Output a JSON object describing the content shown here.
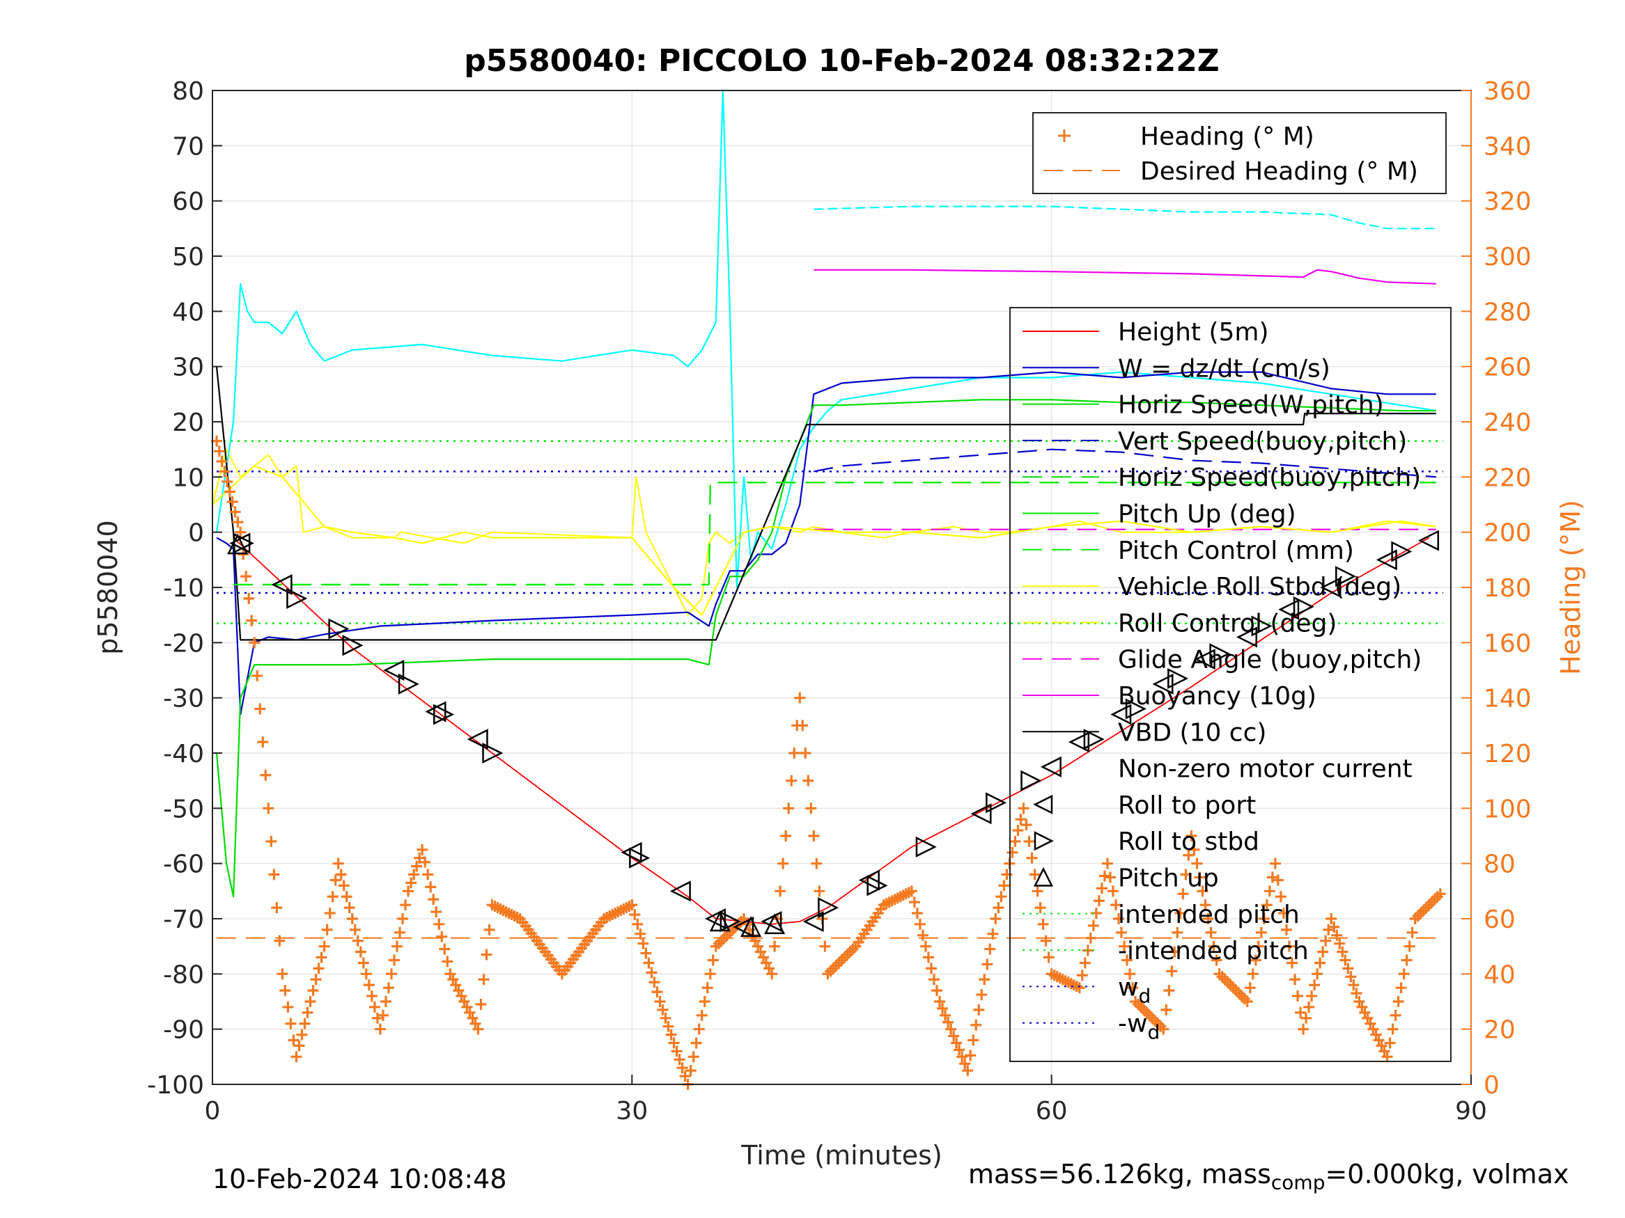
{
  "chart_data": {
    "type": "line",
    "title": "p5580040: PICCOLO 10-Feb-2024 08:32:22Z",
    "xlabel": "Time (minutes)",
    "ylabel": "p5580040",
    "y2label": "Heading (°M)",
    "xlim": [
      0,
      90
    ],
    "ylim": [
      -100,
      80
    ],
    "y2lim": [
      0,
      360
    ],
    "xticks": [
      "0",
      "30",
      "60",
      "90"
    ],
    "yticks": [
      "80",
      "70",
      "60",
      "50",
      "40",
      "30",
      "20",
      "10",
      "0",
      "-10",
      "-20",
      "-30",
      "-40",
      "-50",
      "-60",
      "-70",
      "-80",
      "-90",
      "-100"
    ],
    "y2ticks": [
      "360",
      "340",
      "320",
      "300",
      "280",
      "260",
      "240",
      "220",
      "200",
      "180",
      "160",
      "140",
      "120",
      "100",
      "80",
      "60",
      "40",
      "20",
      "0"
    ],
    "grid": true,
    "legend_top": [
      {
        "label": "Heading (° M)",
        "color": "#f47920",
        "style": "plus"
      },
      {
        "label": "Desired Heading (° M)",
        "color": "#f47920",
        "style": "dash"
      }
    ],
    "legend_main": [
      {
        "label": "Height (5m)",
        "color": "#ff0000",
        "style": "solid"
      },
      {
        "label": "W = dz/dt (cm/s)",
        "color": "#0000cc",
        "style": "solid"
      },
      {
        "label": "Horiz Speed(W,pitch)",
        "color": "#00dd00",
        "style": "solid"
      },
      {
        "label": "Vert Speed(buoy,pitch)",
        "color": "#0000cc",
        "style": "dash"
      },
      {
        "label": "Horiz Speed(buoy,pitch)",
        "color": "#00dd00",
        "style": "dash"
      },
      {
        "label": "Pitch Up (deg)",
        "color": "#00ee00",
        "style": "solid"
      },
      {
        "label": "Pitch Control (mm)",
        "color": "#00ee00",
        "style": "dash"
      },
      {
        "label": "Vehicle Roll Stbd (deg)",
        "color": "#ffff00",
        "style": "solid"
      },
      {
        "label": "Roll Control (deg)",
        "color": "#ffff00",
        "style": "dash"
      },
      {
        "label": "Glide Angle (buoy,pitch)",
        "color": "#ee00ee",
        "style": "dash"
      },
      {
        "label": "Buoyancy (10g)",
        "color": "#ee00ee",
        "style": "solid"
      },
      {
        "label": "VBD (10 cc)",
        "color": "#000000",
        "style": "solid"
      },
      {
        "label": "Non-zero motor current",
        "color": "#000000",
        "style": "none"
      },
      {
        "label": "Roll to port",
        "color": "#000000",
        "style": "tri-left"
      },
      {
        "label": "Roll to stbd",
        "color": "#000000",
        "style": "tri-right"
      },
      {
        "label": "Pitch up",
        "color": "#000000",
        "style": "tri-up"
      },
      {
        "label": "intended pitch",
        "color": "#00ee00",
        "style": "dot"
      },
      {
        "label": "-intended pitch",
        "color": "#00ee00",
        "style": "dot"
      },
      {
        "label": "w",
        "sub": "d",
        "color": "#0000cc",
        "style": "dot"
      },
      {
        "label": "-w",
        "sub": "d",
        "color": "#0000cc",
        "style": "dot"
      }
    ],
    "series": [
      {
        "name": "Height (5m)",
        "color": "#ff0000",
        "x": [
          1.5,
          10,
          20,
          30,
          34,
          36,
          40,
          42,
          44,
          50,
          60,
          70,
          80,
          87
        ],
        "y": [
          -1,
          -21,
          -40,
          -59,
          -66,
          -70,
          -71,
          -70.5,
          -68,
          -57,
          -44,
          -28,
          -11,
          -1
        ]
      },
      {
        "name": "W = dz/dt (cm/s)",
        "color": "#0000cc",
        "x": [
          0.3,
          1.0,
          1.5,
          2.0,
          3.0,
          4.0,
          6.0,
          8.0,
          12,
          16,
          20,
          25,
          30,
          34,
          35.5,
          36,
          37,
          38,
          39,
          40,
          41,
          42,
          43,
          45,
          50,
          55,
          60,
          65,
          70,
          75,
          80,
          84,
          86,
          87.5
        ],
        "y": [
          -1,
          -2,
          -3,
          -33,
          -20,
          -19,
          -19.5,
          -18.5,
          -17,
          -16.5,
          -16,
          -15.5,
          -15,
          -14.5,
          -17,
          -13,
          -7,
          -7,
          -4,
          -4,
          -2,
          5,
          25,
          27,
          28,
          28,
          29,
          28,
          29,
          29,
          26,
          25,
          25,
          25
        ]
      },
      {
        "name": "Horiz Speed(W,pitch)",
        "color": "#00dd00",
        "x": [
          0.3,
          1.0,
          1.5,
          2.0,
          3.0,
          5.0,
          10,
          15,
          20,
          25,
          30,
          34,
          35.5,
          36,
          37,
          38,
          39,
          40,
          41,
          43,
          45,
          50,
          55,
          60,
          65,
          70,
          75,
          80,
          85,
          87.5
        ],
        "y": [
          -40,
          -60,
          -66,
          -30,
          -24,
          -24,
          -24,
          -23.5,
          -23,
          -23,
          -23,
          -23,
          -24,
          -15,
          -8,
          -8,
          -5,
          0,
          10,
          23,
          23,
          23.5,
          24,
          24,
          23.5,
          23.5,
          23,
          22.5,
          22,
          22
        ]
      },
      {
        "name": "Vert Speed(buoy,pitch)",
        "color": "#0000cc",
        "x": [
          43,
          45,
          50,
          55,
          60,
          65,
          70,
          75,
          80,
          85,
          87.5
        ],
        "y": [
          11,
          12,
          13,
          14,
          15,
          14.5,
          13,
          12.5,
          11.5,
          10.5,
          10
        ]
      },
      {
        "name": "Horiz Speed(buoy,pitch)",
        "color": "#00dd00",
        "x": [
          1.5,
          35.5,
          35.6,
          43,
          87.5
        ],
        "y": [
          -9.5,
          -9.5,
          9,
          9,
          9
        ]
      },
      {
        "name": "VBD (10 cc)",
        "color": "#000000",
        "x": [
          0.3,
          1.5,
          2.0,
          36,
          42.5,
          78,
          78.1,
          87.5
        ],
        "y": [
          30,
          0,
          -19.5,
          -19.5,
          19.5,
          19.5,
          21.5,
          21.5
        ]
      },
      {
        "name": "Buoyancy (10g)",
        "color": "#ee00ee",
        "x": [
          43,
          50,
          60,
          70,
          78,
          79,
          80,
          82,
          84,
          87.5
        ],
        "y": [
          47.5,
          47.5,
          47.2,
          46.8,
          46.2,
          47.5,
          47.2,
          46,
          45.3,
          45
        ]
      },
      {
        "name": "Glide Angle (buoy,pitch)",
        "color": "#ee00ee",
        "x": [
          43,
          87.5
        ],
        "y": [
          0.5,
          0.5
        ]
      },
      {
        "name": "Pitch Control (mm)",
        "color": "#00ee00",
        "x": [
          1.5,
          35.5,
          35.6,
          42.5,
          87.5
        ],
        "y": [
          -9.5,
          -9.5,
          9,
          9,
          9
        ]
      },
      {
        "name": "Roll Control (deg)",
        "color": "#ffff00",
        "x": [
          0,
          3,
          5,
          8,
          10,
          13,
          15,
          18,
          20,
          25,
          30,
          33,
          35,
          38,
          40,
          45,
          50,
          55,
          60,
          65,
          70,
          75,
          80,
          85,
          87.5
        ],
        "y": [
          5,
          12,
          10,
          1,
          0,
          -1,
          -2,
          0,
          -1,
          -1,
          -1,
          -10,
          -15,
          0,
          1,
          0,
          0,
          -1,
          1,
          2,
          0,
          1,
          0,
          2,
          1
        ]
      },
      {
        "name": "Heading (° M)",
        "color": "#f47920",
        "x": [
          0.3,
          2,
          3,
          4,
          5,
          6,
          8,
          9,
          11,
          12,
          14,
          15,
          17,
          19,
          20,
          22,
          25,
          28,
          30,
          32,
          34,
          36,
          38,
          40,
          42,
          44,
          46,
          48,
          50,
          52,
          54,
          56,
          58,
          60,
          62,
          64,
          66,
          68,
          70,
          72,
          74,
          76,
          78,
          80,
          82,
          84,
          86,
          88
        ],
        "y": [
          233,
          200,
          160,
          100,
          40,
          10,
          50,
          80,
          40,
          20,
          70,
          85,
          40,
          20,
          65,
          60,
          40,
          60,
          65,
          30,
          0,
          50,
          60,
          40,
          140,
          40,
          50,
          65,
          70,
          30,
          5,
          60,
          100,
          40,
          35,
          80,
          30,
          20,
          90,
          40,
          30,
          80,
          20,
          60,
          30,
          10,
          60,
          70
        ]
      },
      {
        "name": "Desired Heading (° M)",
        "color": "#f47920",
        "x": [
          0.3,
          88
        ],
        "y": [
          53,
          53
        ]
      }
    ],
    "reference_lines": [
      {
        "name": "intended pitch",
        "color": "#00ee00",
        "y": 16.5
      },
      {
        "name": "-intended pitch",
        "color": "#00ee00",
        "y": -16.5
      },
      {
        "name": "w_d",
        "color": "#0000cc",
        "y": 11
      },
      {
        "name": "-w_d",
        "color": "#0000cc",
        "y": -11
      }
    ],
    "markers": {
      "roll_to_port": [
        [
          2.0,
          -2
        ],
        [
          5,
          -9.5
        ],
        [
          13,
          -25
        ],
        [
          16,
          -32.5
        ],
        [
          19,
          -37.5
        ],
        [
          30,
          -58
        ],
        [
          33.5,
          -65
        ],
        [
          36,
          -70
        ],
        [
          38,
          -71.5
        ],
        [
          40,
          -70.5
        ],
        [
          43,
          -70.5
        ],
        [
          47,
          -63
        ],
        [
          55,
          -51
        ],
        [
          60,
          -42.5
        ],
        [
          62,
          -38
        ],
        [
          65,
          -33
        ],
        [
          68,
          -27.5
        ],
        [
          71,
          -23
        ],
        [
          74,
          -19
        ],
        [
          77,
          -14
        ],
        [
          80,
          -10
        ],
        [
          84,
          -5
        ],
        [
          87,
          -1.5
        ]
      ],
      "roll_to_stbd": [
        [
          2.2,
          -2
        ],
        [
          6,
          -12
        ],
        [
          9,
          -17.5
        ],
        [
          10,
          -20.5
        ],
        [
          14,
          -27.5
        ],
        [
          16.5,
          -33
        ],
        [
          20,
          -40
        ],
        [
          30.5,
          -59
        ],
        [
          37,
          -70.5
        ],
        [
          44,
          -68
        ],
        [
          47.5,
          -64
        ],
        [
          51,
          -57
        ],
        [
          56,
          -49
        ],
        [
          58.5,
          -45
        ],
        [
          63,
          -37.5
        ],
        [
          66,
          -32
        ],
        [
          69,
          -26.5
        ],
        [
          72,
          -22
        ],
        [
          75,
          -17
        ],
        [
          78,
          -13.5
        ],
        [
          81,
          -8
        ],
        [
          85,
          -3.5
        ]
      ],
      "pitch_up": [
        [
          1.8,
          -2.2
        ],
        [
          36.3,
          -70.5
        ],
        [
          38.5,
          -71.5
        ],
        [
          40.2,
          -71
        ]
      ]
    },
    "cyan_series": {
      "name": "cyan",
      "color": "#00ffff",
      "x": [
        0.3,
        1.5,
        2.0,
        2.5,
        3,
        4,
        5,
        6,
        7,
        8,
        10,
        15,
        20,
        25,
        30,
        33,
        34,
        35,
        36,
        36.5,
        37,
        37.5,
        38,
        38.5,
        39,
        40,
        41,
        42,
        43,
        44,
        45,
        50,
        55,
        60,
        65,
        70,
        75,
        80,
        85,
        87.5
      ],
      "y": [
        0,
        20,
        45,
        40,
        38,
        38,
        36,
        40,
        34,
        31,
        33,
        34,
        32,
        31,
        33,
        32,
        30,
        33,
        38,
        80,
        40,
        -10,
        10,
        -5,
        0,
        -3,
        5,
        15,
        19,
        22,
        24,
        26,
        28,
        28,
        29,
        28,
        27,
        25,
        23,
        22
      ]
    },
    "cyan_upper": {
      "x": [
        43,
        50,
        55,
        60,
        65,
        70,
        75,
        80,
        82,
        84,
        87.5
      ],
      "y": [
        58.5,
        59,
        59,
        59,
        58.5,
        58,
        58,
        57.5,
        56,
        55,
        55
      ]
    },
    "yellow_series": {
      "x": [
        0,
        1,
        2,
        3,
        4,
        5,
        6,
        6.5,
        8,
        10,
        13,
        13.5,
        18,
        19,
        20,
        30,
        30.3,
        31,
        33,
        34,
        35,
        35.5,
        36,
        37,
        38,
        40,
        42,
        43,
        45,
        48,
        50,
        53,
        55,
        57,
        60,
        62,
        65,
        70,
        75,
        80,
        84,
        87.5
      ],
      "y": [
        5,
        15,
        10,
        12,
        14,
        10,
        12,
        0,
        1,
        -1,
        -1,
        0,
        -2,
        -1,
        0,
        -1,
        10,
        0,
        -10,
        -15,
        -12,
        -2,
        0,
        -2,
        0,
        1,
        0,
        1,
        0,
        -1,
        0,
        1,
        0,
        0,
        1,
        2,
        0,
        0,
        1,
        0,
        2,
        1
      ]
    },
    "footer_left": "10-Feb-2024 10:08:48",
    "footer_right_mass": "mass=56.126kg, mass",
    "footer_right_sub": "comp",
    "footer_right_tail": "=0.000kg, volmax"
  }
}
